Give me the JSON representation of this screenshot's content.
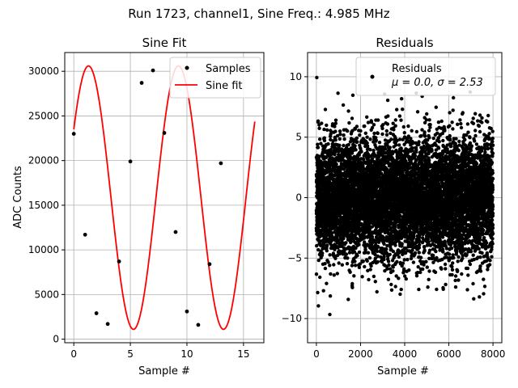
{
  "suptitle": "Run 1723, channel1, Sine Freq.: 4.985 MHz",
  "chart_data": [
    {
      "type": "scatter",
      "title": "Sine Fit",
      "xlabel": "Sample #",
      "ylabel": "ADC Counts",
      "xlim": [
        -0.8,
        16.8
      ],
      "ylim": [
        -400,
        32100
      ],
      "xticks": [
        0,
        5,
        10,
        15
      ],
      "yticks": [
        0,
        5000,
        10000,
        15000,
        20000,
        25000,
        30000
      ],
      "grid": true,
      "legend_position": "top-right",
      "samples": {
        "name": "Samples",
        "color": "#000000",
        "x": [
          0,
          1,
          2,
          3,
          4,
          5,
          6,
          7,
          8,
          9,
          10,
          11,
          12,
          13
        ],
        "y": [
          23000,
          11700,
          2900,
          1700,
          8700,
          19900,
          28700,
          30100,
          23100,
          12000,
          3100,
          1600,
          8400,
          19700
        ]
      },
      "fit": {
        "name": "Sine fit",
        "color": "#ff0000",
        "amplitude": 14750,
        "offset": 15850,
        "period": 7.955,
        "phase": 0.545,
        "x_range": [
          0,
          16
        ]
      }
    },
    {
      "type": "scatter",
      "title": "Residuals",
      "xlabel": "Sample #",
      "ylabel": "",
      "xlim": [
        -400,
        8400
      ],
      "ylim": [
        -12,
        12
      ],
      "xticks": [
        0,
        2000,
        4000,
        6000,
        8000
      ],
      "yticks": [
        -10,
        -5,
        0,
        5,
        10
      ],
      "grid": true,
      "legend_position": "top-right",
      "series": {
        "name": "Residuals",
        "stats_label": "μ = 0.0, σ = 2.53",
        "color": "#000000",
        "n_points": 8000,
        "x_range": [
          0,
          8000
        ],
        "mean": 0.0,
        "sigma": 2.53
      }
    }
  ]
}
